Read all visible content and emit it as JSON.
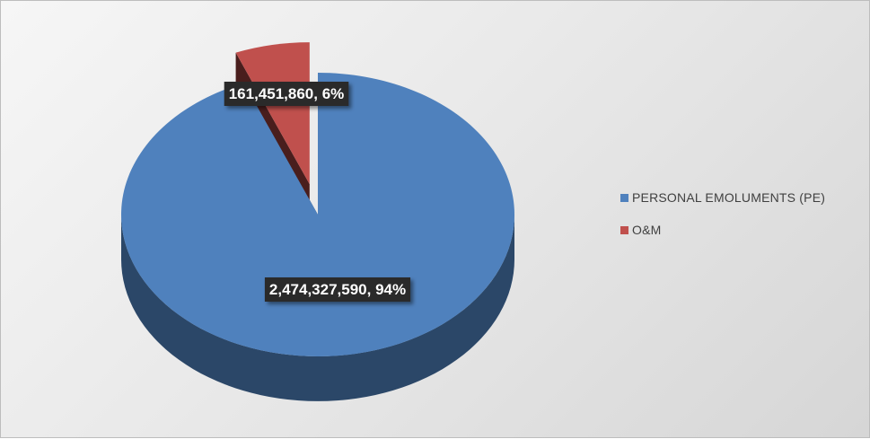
{
  "chart_data": {
    "type": "pie",
    "three_d": true,
    "exploded_slice": "O&M",
    "slices": [
      {
        "label": "PERSONAL EMOLUMENTS (PE)",
        "value": 2474327590,
        "percent": 94,
        "color": "#4f81bd",
        "data_label": "2,474,327,590, 94%"
      },
      {
        "label": "O&M",
        "value": 161451860,
        "percent": 6,
        "color": "#c0504d",
        "data_label": "161,451,860, 6%"
      }
    ],
    "legend": {
      "placement": "right",
      "entries": [
        "PERSONAL EMOLUMENTS (PE)",
        "O&M"
      ]
    }
  }
}
